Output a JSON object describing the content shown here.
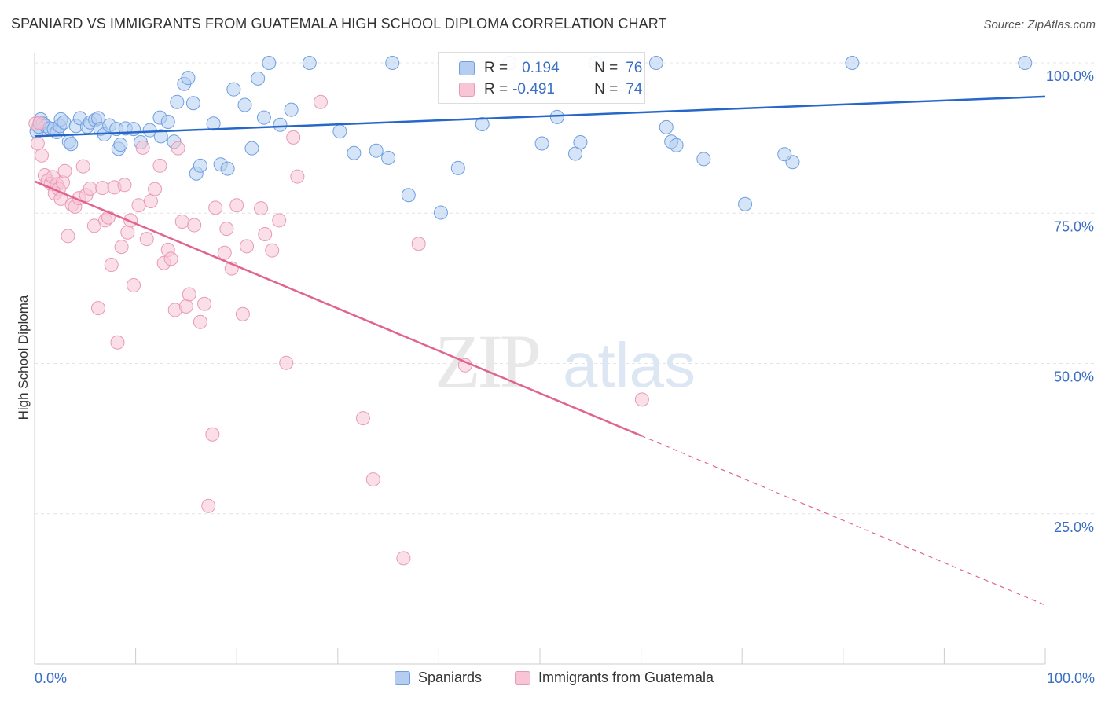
{
  "title": "SPANIARD VS IMMIGRANTS FROM GUATEMALA HIGH SCHOOL DIPLOMA CORRELATION CHART",
  "source": "Source: ZipAtlas.com",
  "watermark": {
    "zip": "ZIP",
    "atlas": "atlas"
  },
  "legend": {
    "rows": [
      {
        "r_label": "R =",
        "r_value": "0.194",
        "n_label": "N =",
        "n_value": "76"
      },
      {
        "r_label": "R =",
        "r_value": "-0.491",
        "n_label": "N =",
        "n_value": "74"
      }
    ]
  },
  "bottom_legend": [
    "Spaniards",
    "Immigrants from Guatemala"
  ],
  "chart_data": {
    "type": "scatter",
    "title": "SPANIARD VS IMMIGRANTS FROM GUATEMALA HIGH SCHOOL DIPLOMA CORRELATION CHART",
    "xlabel": "",
    "ylabel": "High School Diploma",
    "xlim": [
      0,
      100
    ],
    "ylim": [
      0,
      100
    ],
    "x_tick_labels": [
      "0.0%",
      "100.0%"
    ],
    "y_tick_values": [
      25,
      50,
      75,
      100
    ],
    "y_tick_labels": [
      "25.0%",
      "50.0%",
      "75.0%",
      "100.0%"
    ],
    "grid": true,
    "legend_position": "top-center",
    "series": [
      {
        "name": "Spaniards",
        "color": "#6f9fe0",
        "fill": "#b5cdf0",
        "trend": {
          "x": [
            0,
            100
          ],
          "y": [
            87.8,
            94.4
          ],
          "dashed_from": null,
          "color": "#2667c9"
        },
        "points": [
          [
            0.2,
            88.6
          ],
          [
            0.4,
            89.4
          ],
          [
            0.6,
            90.6
          ],
          [
            0.8,
            89.9
          ],
          [
            1.1,
            89.5
          ],
          [
            1.5,
            89.1
          ],
          [
            1.9,
            89.0
          ],
          [
            2.2,
            88.5
          ],
          [
            2.5,
            89.5
          ],
          [
            2.6,
            90.6
          ],
          [
            2.9,
            90.1
          ],
          [
            3.4,
            86.9
          ],
          [
            3.6,
            86.5
          ],
          [
            4.1,
            89.5
          ],
          [
            4.5,
            90.8
          ],
          [
            5.2,
            89.4
          ],
          [
            5.5,
            90.1
          ],
          [
            6.0,
            90.5
          ],
          [
            6.3,
            90.8
          ],
          [
            6.5,
            89.0
          ],
          [
            6.9,
            88.1
          ],
          [
            7.4,
            89.6
          ],
          [
            8.1,
            89.0
          ],
          [
            8.3,
            85.7
          ],
          [
            8.5,
            86.4
          ],
          [
            9.0,
            89.1
          ],
          [
            9.8,
            89.0
          ],
          [
            10.5,
            86.8
          ],
          [
            11.4,
            88.8
          ],
          [
            12.4,
            90.9
          ],
          [
            12.5,
            87.8
          ],
          [
            13.2,
            90.2
          ],
          [
            13.8,
            86.9
          ],
          [
            14.1,
            93.5
          ],
          [
            14.8,
            96.5
          ],
          [
            15.2,
            97.5
          ],
          [
            15.7,
            93.3
          ],
          [
            16.0,
            81.6
          ],
          [
            16.4,
            82.9
          ],
          [
            17.7,
            89.9
          ],
          [
            18.4,
            83.1
          ],
          [
            19.1,
            82.4
          ],
          [
            19.7,
            95.6
          ],
          [
            20.8,
            93.0
          ],
          [
            21.5,
            85.8
          ],
          [
            22.1,
            97.4
          ],
          [
            22.7,
            90.9
          ],
          [
            23.2,
            100.0
          ],
          [
            24.3,
            89.7
          ],
          [
            25.4,
            92.2
          ],
          [
            27.2,
            100.0
          ],
          [
            30.2,
            88.6
          ],
          [
            31.6,
            85.0
          ],
          [
            33.8,
            85.4
          ],
          [
            35.0,
            84.2
          ],
          [
            35.4,
            100.0
          ],
          [
            37.0,
            78.0
          ],
          [
            40.2,
            75.1
          ],
          [
            41.9,
            82.5
          ],
          [
            44.3,
            89.8
          ],
          [
            47.0,
            100.0
          ],
          [
            50.2,
            86.6
          ],
          [
            51.7,
            91.0
          ],
          [
            53.5,
            84.9
          ],
          [
            54.0,
            86.8
          ],
          [
            61.5,
            100.0
          ],
          [
            62.5,
            89.3
          ],
          [
            63.0,
            86.9
          ],
          [
            63.5,
            86.3
          ],
          [
            66.2,
            84.0
          ],
          [
            75.0,
            83.5
          ],
          [
            70.3,
            76.5
          ],
          [
            55.5,
            100.0
          ],
          [
            98.0,
            100.0
          ],
          [
            74.2,
            84.8
          ],
          [
            80.9,
            100.0
          ]
        ]
      },
      {
        "name": "Immigrants from Guatemala",
        "color": "#e89ab4",
        "fill": "#f7c5d5",
        "trend": {
          "x": [
            0,
            100
          ],
          "y": [
            80.3,
            9.8
          ],
          "dashed_from": 60,
          "color": "#e0648f"
        },
        "points": [
          [
            0.1,
            89.9
          ],
          [
            0.3,
            86.6
          ],
          [
            0.5,
            90.0
          ],
          [
            0.7,
            84.6
          ],
          [
            1.0,
            81.3
          ],
          [
            1.3,
            80.4
          ],
          [
            1.6,
            79.9
          ],
          [
            1.8,
            81.0
          ],
          [
            2.0,
            78.3
          ],
          [
            2.2,
            79.8
          ],
          [
            2.4,
            79.0
          ],
          [
            2.6,
            77.4
          ],
          [
            2.8,
            80.1
          ],
          [
            3.0,
            82.0
          ],
          [
            3.3,
            71.2
          ],
          [
            3.7,
            76.4
          ],
          [
            4.0,
            76.1
          ],
          [
            4.4,
            77.5
          ],
          [
            4.8,
            82.8
          ],
          [
            5.1,
            78.0
          ],
          [
            5.5,
            79.1
          ],
          [
            5.9,
            72.9
          ],
          [
            6.3,
            59.2
          ],
          [
            6.7,
            79.2
          ],
          [
            7.0,
            73.8
          ],
          [
            7.3,
            74.3
          ],
          [
            7.6,
            66.4
          ],
          [
            7.9,
            79.3
          ],
          [
            8.2,
            53.5
          ],
          [
            8.6,
            69.4
          ],
          [
            8.9,
            79.7
          ],
          [
            9.2,
            71.8
          ],
          [
            9.5,
            73.8
          ],
          [
            9.8,
            63.0
          ],
          [
            10.3,
            76.3
          ],
          [
            10.7,
            85.9
          ],
          [
            11.1,
            70.7
          ],
          [
            11.5,
            77.0
          ],
          [
            11.9,
            79.0
          ],
          [
            12.4,
            82.9
          ],
          [
            12.8,
            66.7
          ],
          [
            13.2,
            68.9
          ],
          [
            13.5,
            67.4
          ],
          [
            13.9,
            58.9
          ],
          [
            14.2,
            85.8
          ],
          [
            14.6,
            73.6
          ],
          [
            15.0,
            59.5
          ],
          [
            15.3,
            61.5
          ],
          [
            15.8,
            73.0
          ],
          [
            16.4,
            56.9
          ],
          [
            16.8,
            59.9
          ],
          [
            17.2,
            26.3
          ],
          [
            17.6,
            38.2
          ],
          [
            17.9,
            75.9
          ],
          [
            18.8,
            68.4
          ],
          [
            19.0,
            72.4
          ],
          [
            19.5,
            65.8
          ],
          [
            20.0,
            76.3
          ],
          [
            20.6,
            58.2
          ],
          [
            21.0,
            69.5
          ],
          [
            22.4,
            75.8
          ],
          [
            22.8,
            71.5
          ],
          [
            23.5,
            68.8
          ],
          [
            24.2,
            73.8
          ],
          [
            24.9,
            50.1
          ],
          [
            26.0,
            81.1
          ],
          [
            25.6,
            87.6
          ],
          [
            28.3,
            93.5
          ],
          [
            32.5,
            40.9
          ],
          [
            33.5,
            30.7
          ],
          [
            36.5,
            17.6
          ],
          [
            38.0,
            69.9
          ],
          [
            42.6,
            49.7
          ],
          [
            60.1,
            44.0
          ]
        ]
      }
    ]
  }
}
